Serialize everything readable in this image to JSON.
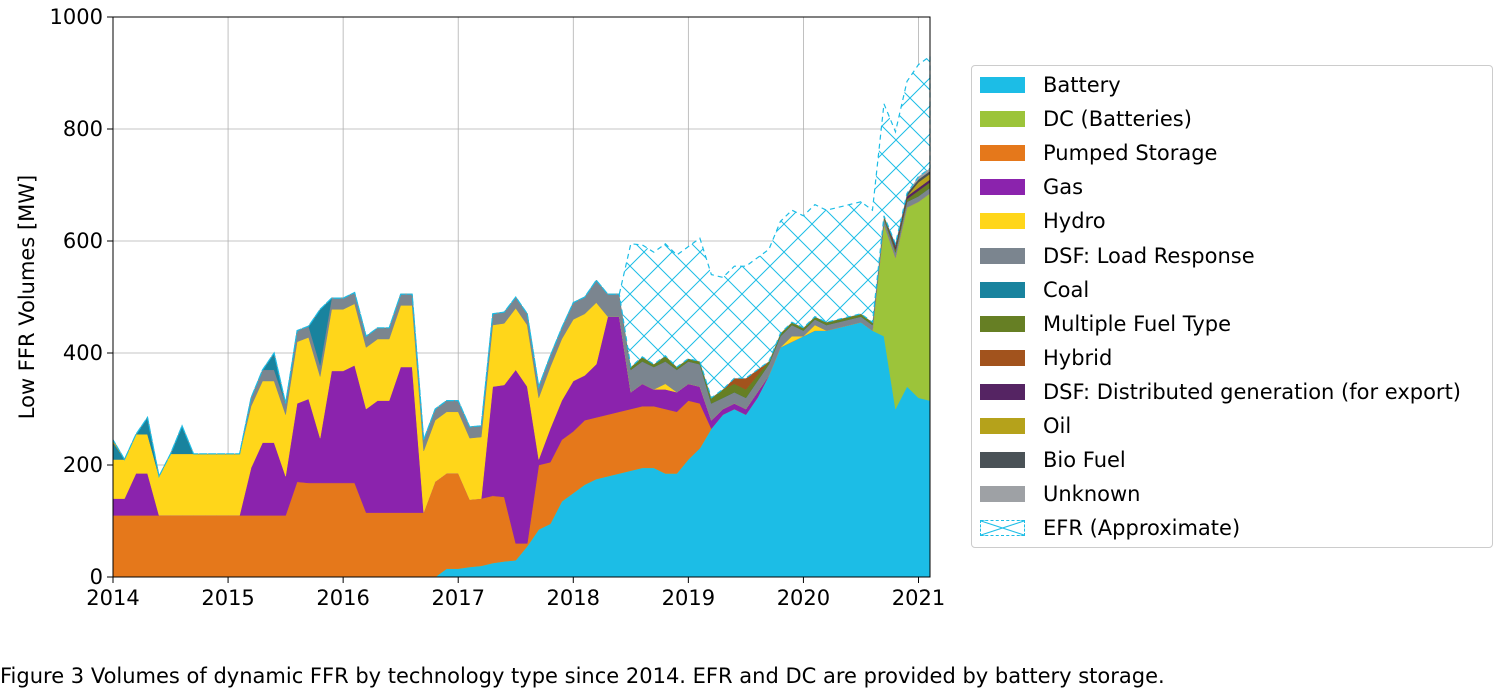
{
  "figure": {
    "caption": "Figure 3 Volumes of dynamic FFR by technology type since 2014. EFR and DC are provided by battery storage."
  },
  "chart_data": {
    "type": "area",
    "stacked": true,
    "title": "",
    "xlabel": "",
    "ylabel": "Low FFR Volumes [MW]",
    "xlim": [
      2014.0,
      2021.1
    ],
    "ylim": [
      0,
      1000
    ],
    "xticks": [
      "2014",
      "2015",
      "2016",
      "2017",
      "2018",
      "2019",
      "2020",
      "2021"
    ],
    "yticks": [
      "0",
      "200",
      "400",
      "600",
      "800",
      "1000"
    ],
    "grid": true,
    "legend_position": "right",
    "x": [
      2014.0,
      2014.1,
      2014.2,
      2014.3,
      2014.4,
      2014.5,
      2014.6,
      2014.7,
      2014.8,
      2014.9,
      2015.0,
      2015.1,
      2015.2,
      2015.3,
      2015.4,
      2015.5,
      2015.6,
      2015.7,
      2015.8,
      2015.9,
      2016.0,
      2016.1,
      2016.2,
      2016.3,
      2016.4,
      2016.5,
      2016.6,
      2016.7,
      2016.8,
      2016.9,
      2017.0,
      2017.1,
      2017.2,
      2017.3,
      2017.4,
      2017.5,
      2017.6,
      2017.7,
      2017.8,
      2017.9,
      2018.0,
      2018.1,
      2018.2,
      2018.3,
      2018.4,
      2018.5,
      2018.6,
      2018.7,
      2018.8,
      2018.9,
      2019.0,
      2019.1,
      2019.2,
      2019.3,
      2019.4,
      2019.5,
      2019.6,
      2019.7,
      2019.8,
      2019.9,
      2020.0,
      2020.1,
      2020.2,
      2020.3,
      2020.4,
      2020.5,
      2020.6,
      2020.7,
      2020.8,
      2020.9,
      2021.0,
      2021.1
    ],
    "series": [
      {
        "name": "Battery",
        "color": "#1cbde6",
        "values": [
          0,
          0,
          0,
          0,
          0,
          0,
          0,
          0,
          0,
          0,
          0,
          0,
          0,
          0,
          0,
          0,
          0,
          0,
          0,
          0,
          0,
          0,
          0,
          0,
          0,
          0,
          0,
          0,
          0,
          15,
          15,
          18,
          20,
          25,
          28,
          30,
          55,
          85,
          95,
          135,
          150,
          165,
          175,
          180,
          185,
          190,
          195,
          195,
          185,
          185,
          210,
          230,
          265,
          290,
          300,
          290,
          320,
          360,
          410,
          420,
          430,
          440,
          440,
          445,
          450,
          455,
          440,
          430,
          300,
          340,
          320,
          315
        ]
      },
      {
        "name": "DC (Batteries)",
        "color": "#9cc43a",
        "values": [
          0,
          0,
          0,
          0,
          0,
          0,
          0,
          0,
          0,
          0,
          0,
          0,
          0,
          0,
          0,
          0,
          0,
          0,
          0,
          0,
          0,
          0,
          0,
          0,
          0,
          0,
          0,
          0,
          0,
          0,
          0,
          0,
          0,
          0,
          0,
          0,
          0,
          0,
          0,
          0,
          0,
          0,
          0,
          0,
          0,
          0,
          0,
          0,
          0,
          0,
          0,
          0,
          0,
          0,
          0,
          0,
          0,
          0,
          0,
          0,
          0,
          0,
          0,
          0,
          0,
          0,
          0,
          200,
          270,
          320,
          350,
          370
        ]
      },
      {
        "name": "Pumped Storage",
        "color": "#e5781b",
        "values": [
          110,
          110,
          110,
          110,
          110,
          110,
          110,
          110,
          110,
          110,
          110,
          110,
          110,
          110,
          110,
          110,
          170,
          168,
          168,
          168,
          168,
          168,
          115,
          115,
          115,
          115,
          115,
          115,
          170,
          170,
          170,
          120,
          120,
          120,
          115,
          30,
          5,
          115,
          110,
          110,
          110,
          115,
          110,
          110,
          110,
          110,
          110,
          110,
          115,
          110,
          105,
          80,
          0,
          0,
          0,
          0,
          0,
          0,
          0,
          0,
          0,
          0,
          0,
          0,
          0,
          0,
          0,
          0,
          0,
          0,
          0,
          0
        ]
      },
      {
        "name": "Gas",
        "color": "#8b23ad",
        "values": [
          30,
          30,
          75,
          75,
          0,
          0,
          0,
          0,
          0,
          0,
          0,
          0,
          85,
          130,
          130,
          70,
          140,
          150,
          80,
          200,
          200,
          210,
          185,
          200,
          200,
          260,
          260,
          0,
          0,
          0,
          0,
          0,
          0,
          195,
          200,
          310,
          280,
          10,
          60,
          70,
          90,
          80,
          95,
          175,
          170,
          30,
          40,
          30,
          35,
          35,
          30,
          30,
          15,
          10,
          10,
          10,
          10,
          0,
          0,
          0,
          0,
          0,
          0,
          0,
          0,
          0,
          0,
          0,
          0,
          0,
          0,
          0
        ]
      },
      {
        "name": "Hydro",
        "color": "#ffd61a",
        "values": [
          70,
          70,
          70,
          70,
          70,
          110,
          110,
          110,
          110,
          110,
          110,
          110,
          110,
          110,
          110,
          110,
          110,
          110,
          110,
          110,
          110,
          110,
          110,
          110,
          110,
          110,
          110,
          110,
          110,
          110,
          110,
          110,
          110,
          110,
          110,
          110,
          110,
          110,
          110,
          110,
          110,
          110,
          110,
          0,
          0,
          0,
          0,
          0,
          10,
          0,
          0,
          0,
          0,
          0,
          0,
          0,
          0,
          0,
          0,
          10,
          0,
          10,
          0,
          0,
          0,
          0,
          0,
          0,
          0,
          0,
          0,
          0
        ]
      },
      {
        "name": "DSF: Load Response",
        "color": "#7b858f",
        "values": [
          0,
          0,
          0,
          0,
          0,
          0,
          0,
          0,
          0,
          0,
          0,
          0,
          15,
          20,
          20,
          20,
          20,
          20,
          20,
          20,
          20,
          20,
          20,
          20,
          20,
          20,
          20,
          20,
          20,
          20,
          20,
          20,
          20,
          20,
          20,
          20,
          20,
          20,
          20,
          20,
          30,
          30,
          40,
          40,
          40,
          40,
          40,
          40,
          40,
          40,
          40,
          40,
          30,
          20,
          20,
          20,
          20,
          20,
          20,
          20,
          10,
          10,
          10,
          10,
          10,
          10,
          10,
          10,
          10,
          10,
          10,
          10
        ]
      },
      {
        "name": "Coal",
        "color": "#19839e",
        "values": [
          30,
          0,
          0,
          30,
          0,
          0,
          50,
          0,
          0,
          0,
          0,
          0,
          0,
          0,
          30,
          0,
          0,
          0,
          100,
          0,
          0,
          0,
          0,
          0,
          0,
          0,
          0,
          0,
          0,
          0,
          0,
          0,
          0,
          0,
          0,
          0,
          0,
          0,
          0,
          0,
          0,
          0,
          0,
          0,
          0,
          0,
          0,
          0,
          0,
          0,
          0,
          0,
          0,
          0,
          0,
          0,
          0,
          0,
          0,
          0,
          0,
          0,
          0,
          0,
          0,
          0,
          0,
          0,
          0,
          0,
          0,
          0
        ]
      },
      {
        "name": "Multiple Fuel Type",
        "color": "#667f24",
        "values": [
          0,
          0,
          0,
          0,
          0,
          0,
          0,
          0,
          0,
          0,
          0,
          0,
          0,
          0,
          0,
          0,
          0,
          0,
          0,
          0,
          0,
          0,
          0,
          0,
          0,
          0,
          0,
          0,
          0,
          0,
          0,
          0,
          0,
          0,
          0,
          0,
          0,
          0,
          0,
          0,
          0,
          0,
          0,
          0,
          0,
          5,
          8,
          5,
          10,
          5,
          5,
          5,
          10,
          15,
          15,
          15,
          10,
          5,
          5,
          5,
          5,
          5,
          5,
          5,
          5,
          5,
          5,
          5,
          5,
          5,
          10,
          10
        ]
      },
      {
        "name": "Hybrid",
        "color": "#a2531d",
        "values": [
          0,
          0,
          0,
          0,
          0,
          0,
          0,
          0,
          0,
          0,
          0,
          0,
          0,
          0,
          0,
          0,
          0,
          0,
          0,
          0,
          0,
          0,
          0,
          0,
          0,
          0,
          0,
          0,
          0,
          0,
          0,
          0,
          0,
          0,
          0,
          0,
          0,
          0,
          0,
          0,
          0,
          0,
          0,
          0,
          0,
          0,
          0,
          0,
          0,
          0,
          0,
          0,
          0,
          0,
          10,
          20,
          10,
          0,
          0,
          0,
          0,
          0,
          0,
          0,
          0,
          0,
          0,
          0,
          0,
          0,
          0,
          0
        ]
      },
      {
        "name": "DSF: Distributed generation (for export)",
        "color": "#552463",
        "values": [
          0,
          0,
          0,
          0,
          0,
          0,
          0,
          0,
          0,
          0,
          0,
          0,
          0,
          0,
          0,
          0,
          0,
          0,
          0,
          0,
          0,
          0,
          0,
          0,
          0,
          0,
          0,
          0,
          0,
          0,
          0,
          0,
          0,
          0,
          0,
          0,
          0,
          0,
          0,
          0,
          0,
          0,
          0,
          0,
          0,
          0,
          0,
          0,
          0,
          0,
          0,
          0,
          0,
          0,
          0,
          0,
          0,
          0,
          0,
          0,
          0,
          0,
          0,
          0,
          0,
          0,
          0,
          0,
          5,
          5,
          5,
          5
        ]
      },
      {
        "name": "Oil",
        "color": "#b5a21b",
        "values": [
          5,
          0,
          0,
          0,
          0,
          0,
          0,
          0,
          0,
          0,
          0,
          0,
          0,
          0,
          0,
          0,
          0,
          0,
          0,
          0,
          0,
          0,
          0,
          0,
          0,
          0,
          0,
          0,
          0,
          0,
          0,
          0,
          0,
          0,
          0,
          0,
          0,
          0,
          0,
          0,
          0,
          0,
          0,
          0,
          0,
          0,
          0,
          0,
          0,
          0,
          0,
          0,
          0,
          0,
          0,
          0,
          0,
          0,
          0,
          0,
          0,
          0,
          0,
          0,
          0,
          0,
          0,
          0,
          0,
          0,
          10,
          10
        ]
      },
      {
        "name": "Bio Fuel",
        "color": "#4a5257",
        "values": [
          0,
          0,
          0,
          0,
          0,
          0,
          0,
          0,
          0,
          0,
          0,
          0,
          0,
          0,
          0,
          0,
          0,
          0,
          0,
          0,
          0,
          0,
          0,
          0,
          0,
          0,
          0,
          0,
          0,
          0,
          0,
          0,
          0,
          0,
          0,
          0,
          0,
          0,
          0,
          0,
          0,
          0,
          0,
          0,
          0,
          0,
          0,
          0,
          0,
          0,
          0,
          0,
          0,
          0,
          0,
          0,
          0,
          0,
          0,
          0,
          0,
          0,
          0,
          0,
          0,
          0,
          0,
          0,
          5,
          5,
          5,
          5
        ]
      },
      {
        "name": "Unknown",
        "color": "#9ea1a5",
        "values": [
          0,
          0,
          0,
          0,
          0,
          0,
          0,
          0,
          0,
          0,
          0,
          0,
          0,
          0,
          0,
          0,
          0,
          0,
          0,
          0,
          0,
          0,
          0,
          0,
          0,
          0,
          0,
          0,
          0,
          0,
          0,
          0,
          0,
          0,
          0,
          0,
          0,
          0,
          0,
          0,
          0,
          0,
          0,
          0,
          0,
          0,
          0,
          0,
          0,
          0,
          0,
          0,
          0,
          0,
          0,
          0,
          0,
          0,
          0,
          0,
          0,
          0,
          0,
          0,
          0,
          0,
          0,
          0,
          0,
          0,
          5,
          5
        ]
      },
      {
        "name": "EFR (Approximate)",
        "color": "#1cbde6",
        "hatched": true,
        "values": [
          0,
          0,
          0,
          0,
          0,
          0,
          0,
          0,
          0,
          0,
          0,
          0,
          0,
          0,
          0,
          0,
          0,
          0,
          0,
          0,
          0,
          0,
          0,
          0,
          0,
          0,
          0,
          0,
          0,
          0,
          0,
          0,
          0,
          0,
          0,
          0,
          0,
          0,
          0,
          0,
          0,
          0,
          0,
          0,
          0,
          220,
          200,
          200,
          200,
          200,
          200,
          220,
          220,
          200,
          200,
          200,
          200,
          200,
          200,
          200,
          200,
          200,
          200,
          200,
          200,
          200,
          200,
          200,
          200,
          200,
          200,
          200
        ]
      }
    ]
  }
}
